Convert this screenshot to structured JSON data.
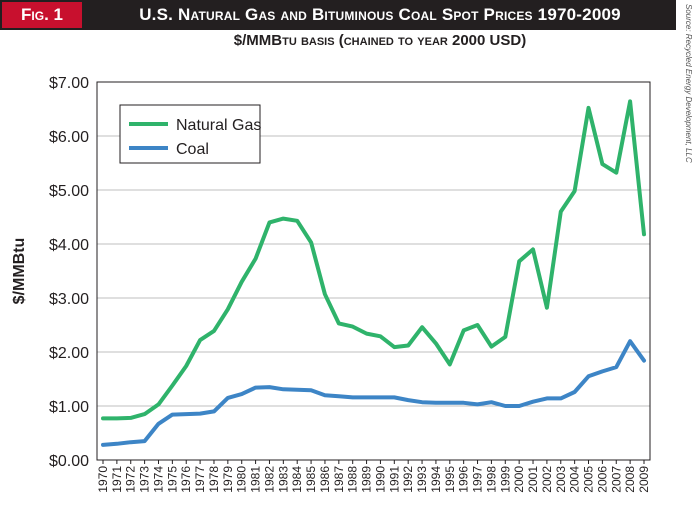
{
  "header": {
    "fig_label": "Fig. 1",
    "title": "U.S. Natural Gas and Bituminous Coal Spot Prices 1970-2009",
    "subtitle": "$/MMBtu basis (chained to year 2000 USD)",
    "source": "Source: Recycled Energy Development, LLC"
  },
  "colors": {
    "banner": "#231f20",
    "fig_label_bg": "#c8102e",
    "gas": "#2fb36b",
    "coal": "#3d85c6",
    "grid": "#bfbfbf"
  },
  "chart_data": {
    "type": "line",
    "title": "U.S. Natural Gas and Bituminous Coal Spot Prices 1970-2009",
    "subtitle": "$/MMBtu basis (chained to year 2000 USD)",
    "xlabel": "",
    "ylabel": "$/MMBtu",
    "ylim": [
      0,
      7
    ],
    "yticks": [
      0,
      1,
      2,
      3,
      4,
      5,
      6,
      7
    ],
    "ytick_labels": [
      "$0.00",
      "$1.00",
      "$2.00",
      "$3.00",
      "$4.00",
      "$5.00",
      "$6.00",
      "$7.00"
    ],
    "grid": true,
    "legend_position": "top-left",
    "x": [
      "1970",
      "1971",
      "1972",
      "1973",
      "1974",
      "1975",
      "1976",
      "1977",
      "1978",
      "1979",
      "1980",
      "1981",
      "1982",
      "1983",
      "1984",
      "1985",
      "1986",
      "1987",
      "1988",
      "1989",
      "1990",
      "1991",
      "1992",
      "1993",
      "1994",
      "1995",
      "1996",
      "1997",
      "1998",
      "1999",
      "2000",
      "2001",
      "2002",
      "2003",
      "2004",
      "2005",
      "2006",
      "2007",
      "2008",
      "2009"
    ],
    "series": [
      {
        "name": "Natural Gas",
        "color": "#2fb36b",
        "values": [
          0.77,
          0.77,
          0.78,
          0.85,
          1.03,
          1.38,
          1.74,
          2.22,
          2.39,
          2.79,
          3.3,
          3.73,
          4.4,
          4.47,
          4.43,
          4.03,
          3.07,
          2.53,
          2.47,
          2.34,
          2.29,
          2.09,
          2.12,
          2.46,
          2.16,
          1.77,
          2.4,
          2.5,
          2.1,
          2.28,
          3.68,
          3.9,
          2.82,
          4.6,
          4.98,
          6.52,
          5.48,
          5.32,
          6.64,
          4.18
        ]
      },
      {
        "name": "Coal",
        "color": "#3d85c6",
        "values": [
          0.28,
          0.3,
          0.33,
          0.35,
          0.67,
          0.84,
          0.85,
          0.86,
          0.9,
          1.15,
          1.22,
          1.34,
          1.35,
          1.31,
          1.3,
          1.29,
          1.2,
          1.18,
          1.16,
          1.16,
          1.16,
          1.16,
          1.11,
          1.07,
          1.06,
          1.06,
          1.06,
          1.03,
          1.07,
          1.0,
          1.0,
          1.08,
          1.14,
          1.14,
          1.26,
          1.55,
          1.64,
          1.72,
          2.2,
          1.84
        ]
      }
    ]
  }
}
